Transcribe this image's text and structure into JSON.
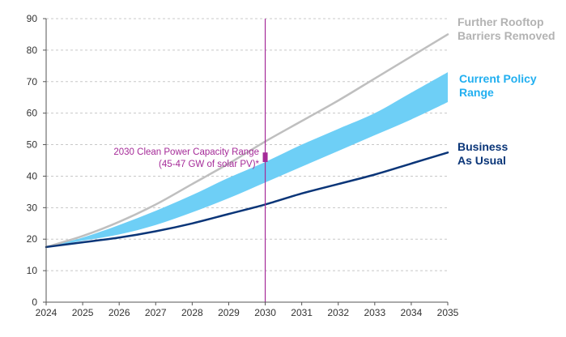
{
  "chart_data": {
    "type": "area",
    "title": "",
    "xlabel": "",
    "ylabel": "",
    "xlim": [
      2024,
      2035
    ],
    "ylim": [
      0,
      90
    ],
    "x_ticks": [
      "2024",
      "2025",
      "2026",
      "2027",
      "2028",
      "2029",
      "2030",
      "2031",
      "2032",
      "2033",
      "2034",
      "2035"
    ],
    "y_ticks": [
      "0",
      "10",
      "20",
      "30",
      "40",
      "50",
      "60",
      "70",
      "80",
      "90"
    ],
    "grid": "horizontal-dashed",
    "x": [
      2024,
      2025,
      2026,
      2027,
      2028,
      2029,
      2030,
      2031,
      2032,
      2033,
      2034,
      2035
    ],
    "series": [
      {
        "name": "Further Rooftop Barriers Removed",
        "label_lines": [
          "Further Rooftop",
          "Barriers Removed"
        ],
        "kind": "line",
        "color": "#bfbfbf",
        "values": [
          17.5,
          21,
          25.5,
          31,
          37.5,
          44,
          51,
          57.5,
          64,
          71,
          78,
          85
        ]
      },
      {
        "name": "Current Policy Range",
        "label_lines": [
          "Current Policy",
          "Range"
        ],
        "kind": "band",
        "color": "#6ecff6",
        "upper": [
          17.5,
          20.5,
          24.5,
          29,
          34,
          39.5,
          44.5,
          50,
          55,
          60,
          66.5,
          73
        ],
        "lower": [
          17.5,
          19.5,
          21.5,
          24.5,
          28.5,
          33,
          38,
          43,
          48,
          53,
          58,
          63.5
        ]
      },
      {
        "name": "Business As Usual",
        "label_lines": [
          "Business",
          "As Usual"
        ],
        "kind": "line",
        "color": "#0a3578",
        "values": [
          17.5,
          19,
          20.5,
          22.5,
          25,
          28,
          31,
          34.5,
          37.5,
          40.5,
          44,
          47.5
        ]
      }
    ],
    "annotation": {
      "x": 2030,
      "line_color": "#a52a98",
      "text_color": "#a52a98",
      "lines": [
        "2030 Clean Power Capacity Range",
        "(45-47 GW of solar PV)*"
      ],
      "range": [
        45,
        47
      ]
    }
  }
}
